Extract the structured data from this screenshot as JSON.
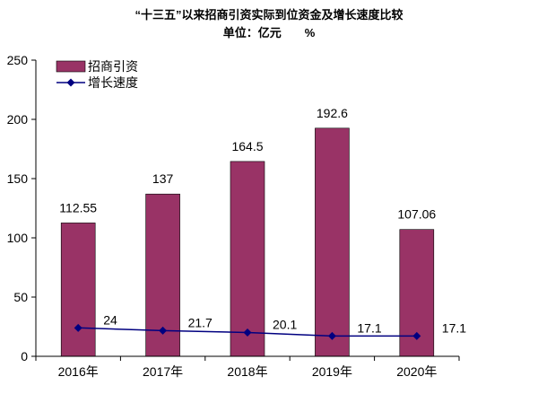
{
  "chart_data": {
    "type": "bar",
    "title": "“十三五”以来招商引资实际到位资金及增长速度比较",
    "subtitle": "单位：亿元　　%",
    "categories": [
      "2016年",
      "2017年",
      "2018年",
      "2019年",
      "2020年"
    ],
    "ylim": [
      0,
      250
    ],
    "yticks": [
      "0",
      "50",
      "100",
      "150",
      "200",
      "250"
    ],
    "legend_position": "top-left",
    "grid": false,
    "series": [
      {
        "name": "招商引资",
        "type": "bar",
        "values": [
          112.55,
          137,
          164.5,
          192.6,
          107.06
        ],
        "labels": [
          "112.55",
          "137",
          "164.5",
          "192.6",
          "107.06"
        ],
        "color": "#993366"
      },
      {
        "name": "增长速度",
        "type": "line",
        "values": [
          24,
          21.7,
          20.1,
          17.1,
          17.1
        ],
        "labels": [
          "24",
          "21.7",
          "20.1",
          "17.1",
          "17.1"
        ],
        "color": "#000080"
      }
    ]
  }
}
